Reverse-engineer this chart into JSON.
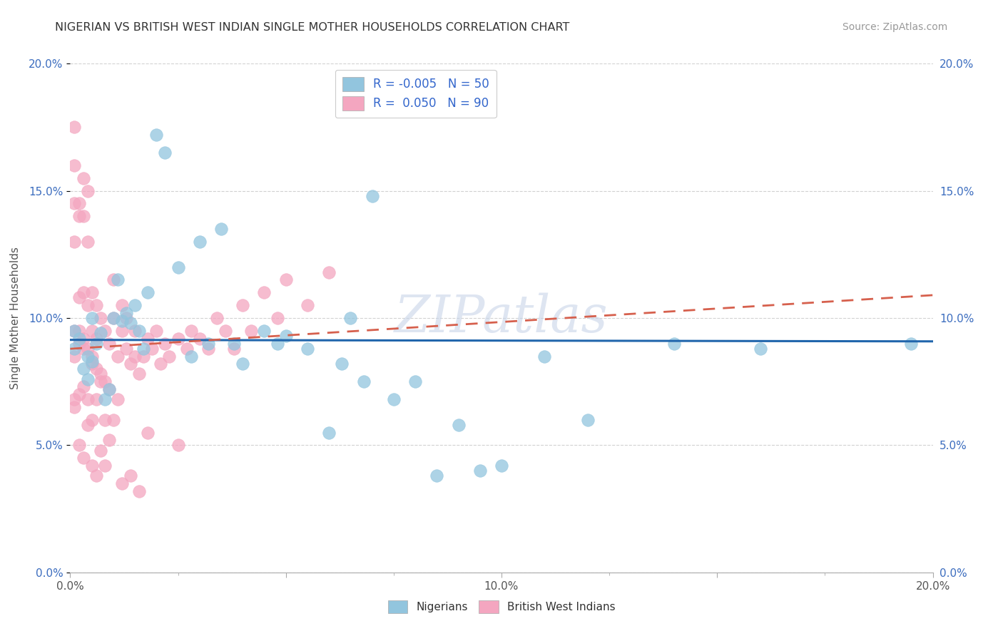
{
  "title": "NIGERIAN VS BRITISH WEST INDIAN SINGLE MOTHER HOUSEHOLDS CORRELATION CHART",
  "source": "Source: ZipAtlas.com",
  "ylabel": "Single Mother Households",
  "xlim": [
    0.0,
    0.2
  ],
  "ylim": [
    0.0,
    0.2
  ],
  "ytick_values": [
    0.0,
    0.05,
    0.1,
    0.15,
    0.2
  ],
  "ytick_labels": [
    "0.0%",
    "5.0%",
    "10.0%",
    "15.0%",
    "20.0%"
  ],
  "xtick_major": [
    0.0,
    0.1,
    0.2
  ],
  "xtick_major_labels": [
    "0.0%",
    "10.0%",
    "20.0%"
  ],
  "nigerians_color": "#92c5de",
  "bwi_color": "#f4a6c0",
  "nigerians_edge_color": "#4393c3",
  "bwi_edge_color": "#d6604d",
  "trend_nigerian_color": "#2166ac",
  "trend_bwi_color": "#d6604d",
  "background_color": "#ffffff",
  "grid_color": "#cccccc",
  "watermark": "ZIPatlas",
  "watermark_color": "#c8d4e8",
  "tick_color": "#3c6dbf",
  "title_color": "#333333",
  "source_color": "#999999",
  "legend_text_color": "#3366cc",
  "nigerians_R": -0.005,
  "nigerians_N": 50,
  "bwi_R": 0.05,
  "bwi_N": 90,
  "nig_x": [
    0.001,
    0.001,
    0.002,
    0.003,
    0.004,
    0.004,
    0.005,
    0.005,
    0.006,
    0.007,
    0.008,
    0.009,
    0.01,
    0.011,
    0.012,
    0.013,
    0.014,
    0.015,
    0.016,
    0.017,
    0.018,
    0.02,
    0.022,
    0.025,
    0.028,
    0.03,
    0.032,
    0.035,
    0.038,
    0.04,
    0.045,
    0.048,
    0.05,
    0.055,
    0.06,
    0.063,
    0.065,
    0.068,
    0.07,
    0.075,
    0.08,
    0.085,
    0.09,
    0.095,
    0.1,
    0.11,
    0.12,
    0.14,
    0.16,
    0.195
  ],
  "nig_y": [
    0.088,
    0.095,
    0.092,
    0.08,
    0.085,
    0.076,
    0.083,
    0.1,
    0.09,
    0.094,
    0.068,
    0.072,
    0.1,
    0.115,
    0.099,
    0.102,
    0.098,
    0.105,
    0.095,
    0.088,
    0.11,
    0.172,
    0.165,
    0.12,
    0.085,
    0.13,
    0.09,
    0.135,
    0.09,
    0.082,
    0.095,
    0.09,
    0.093,
    0.088,
    0.055,
    0.082,
    0.1,
    0.075,
    0.148,
    0.068,
    0.075,
    0.038,
    0.058,
    0.04,
    0.042,
    0.085,
    0.06,
    0.09,
    0.088,
    0.09
  ],
  "bwi_x": [
    0.001,
    0.001,
    0.001,
    0.001,
    0.001,
    0.001,
    0.001,
    0.002,
    0.002,
    0.002,
    0.002,
    0.002,
    0.002,
    0.003,
    0.003,
    0.003,
    0.003,
    0.003,
    0.003,
    0.004,
    0.004,
    0.004,
    0.004,
    0.004,
    0.005,
    0.005,
    0.005,
    0.005,
    0.005,
    0.006,
    0.006,
    0.006,
    0.006,
    0.007,
    0.007,
    0.007,
    0.008,
    0.008,
    0.008,
    0.009,
    0.009,
    0.01,
    0.01,
    0.011,
    0.011,
    0.012,
    0.012,
    0.013,
    0.013,
    0.014,
    0.015,
    0.015,
    0.016,
    0.017,
    0.018,
    0.018,
    0.019,
    0.02,
    0.021,
    0.022,
    0.023,
    0.025,
    0.025,
    0.027,
    0.028,
    0.03,
    0.032,
    0.034,
    0.036,
    0.038,
    0.04,
    0.042,
    0.045,
    0.048,
    0.05,
    0.055,
    0.06,
    0.001,
    0.002,
    0.003,
    0.004,
    0.005,
    0.006,
    0.007,
    0.008,
    0.009,
    0.01,
    0.012,
    0.014,
    0.016
  ],
  "bwi_y": [
    0.085,
    0.16,
    0.13,
    0.095,
    0.145,
    0.175,
    0.065,
    0.095,
    0.145,
    0.09,
    0.14,
    0.07,
    0.108,
    0.092,
    0.14,
    0.155,
    0.088,
    0.073,
    0.11,
    0.088,
    0.13,
    0.15,
    0.068,
    0.105,
    0.082,
    0.095,
    0.06,
    0.11,
    0.085,
    0.08,
    0.092,
    0.068,
    0.105,
    0.078,
    0.1,
    0.075,
    0.075,
    0.095,
    0.06,
    0.072,
    0.09,
    0.1,
    0.115,
    0.068,
    0.085,
    0.095,
    0.105,
    0.088,
    0.1,
    0.082,
    0.085,
    0.095,
    0.078,
    0.085,
    0.092,
    0.055,
    0.088,
    0.095,
    0.082,
    0.09,
    0.085,
    0.092,
    0.05,
    0.088,
    0.095,
    0.092,
    0.088,
    0.1,
    0.095,
    0.088,
    0.105,
    0.095,
    0.11,
    0.1,
    0.115,
    0.105,
    0.118,
    0.068,
    0.05,
    0.045,
    0.058,
    0.042,
    0.038,
    0.048,
    0.042,
    0.052,
    0.06,
    0.035,
    0.038,
    0.032
  ]
}
